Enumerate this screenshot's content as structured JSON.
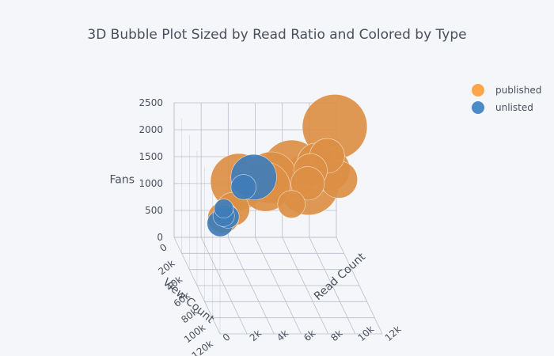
{
  "chart_data": {
    "type": "scatter",
    "mode": "3d-bubble",
    "title": "3D Bubble Plot Sized by Read Ratio and Colored by Type",
    "axes": {
      "x": {
        "title": "View Count",
        "tick_labels": [
          "0",
          "20k",
          "40k",
          "60k",
          "80k",
          "100k",
          "120k"
        ],
        "tick_values": [
          0,
          20000,
          40000,
          60000,
          80000,
          100000,
          120000
        ]
      },
      "y": {
        "title": "Read Count",
        "tick_labels": [
          "0",
          "2k",
          "4k",
          "6k",
          "8k",
          "10k",
          "12k"
        ],
        "tick_values": [
          0,
          2000,
          4000,
          6000,
          8000,
          10000,
          12000
        ]
      },
      "z": {
        "title": "Fans",
        "tick_labels": [
          "0",
          "500",
          "1000",
          "1500",
          "2000",
          "2500"
        ],
        "tick_values": [
          0,
          500,
          1000,
          1500,
          2000,
          2500
        ]
      }
    },
    "legend": {
      "position": "top-right"
    },
    "series": [
      {
        "name": "published",
        "color": "#ffa64d",
        "points": [
          {
            "x": 2500,
            "y": 2200,
            "z": 2300,
            "ratio": 0.92
          },
          {
            "x": 1500,
            "y": 1400,
            "z": 1350,
            "ratio": 0.82
          },
          {
            "x": 2000,
            "y": 1700,
            "z": 1150,
            "ratio": 0.86
          },
          {
            "x": 1200,
            "y": 1000,
            "z": 1150,
            "ratio": 0.7
          },
          {
            "x": 1000,
            "y": 900,
            "z": 950,
            "ratio": 0.66
          },
          {
            "x": 1600,
            "y": 1900,
            "z": 1500,
            "ratio": 0.48
          },
          {
            "x": 1800,
            "y": 2100,
            "z": 1650,
            "ratio": 0.42
          },
          {
            "x": 1300,
            "y": 1800,
            "z": 1300,
            "ratio": 0.4
          },
          {
            "x": 900,
            "y": 2200,
            "z": 1250,
            "ratio": 0.56
          },
          {
            "x": 1100,
            "y": 2400,
            "z": 1100,
            "ratio": 0.46
          },
          {
            "x": 600,
            "y": 1800,
            "z": 950,
            "ratio": 0.4
          },
          {
            "x": 200,
            "y": 1500,
            "z": 500,
            "ratio": 0.3
          },
          {
            "x": 400,
            "y": 400,
            "z": 950,
            "ratio": 0.78
          },
          {
            "x": 200,
            "y": 100,
            "z": 250,
            "ratio": 0.36
          },
          {
            "x": 150,
            "y": 300,
            "z": 400,
            "ratio": 0.4
          }
        ]
      },
      {
        "name": "unlisted",
        "color": "#4a8bc8",
        "points": [
          {
            "x": 500,
            "y": 700,
            "z": 1050,
            "ratio": 0.6
          },
          {
            "x": 400,
            "y": 500,
            "z": 850,
            "ratio": 0.26
          },
          {
            "x": 100,
            "y": 200,
            "z": 250,
            "ratio": 0.22
          },
          {
            "x": 50,
            "y": 50,
            "z": 120,
            "ratio": 0.28
          },
          {
            "x": 300,
            "y": 100,
            "z": 300,
            "ratio": 0.2
          },
          {
            "x": 80,
            "y": 120,
            "z": 400,
            "ratio": 0.16
          }
        ]
      }
    ]
  }
}
